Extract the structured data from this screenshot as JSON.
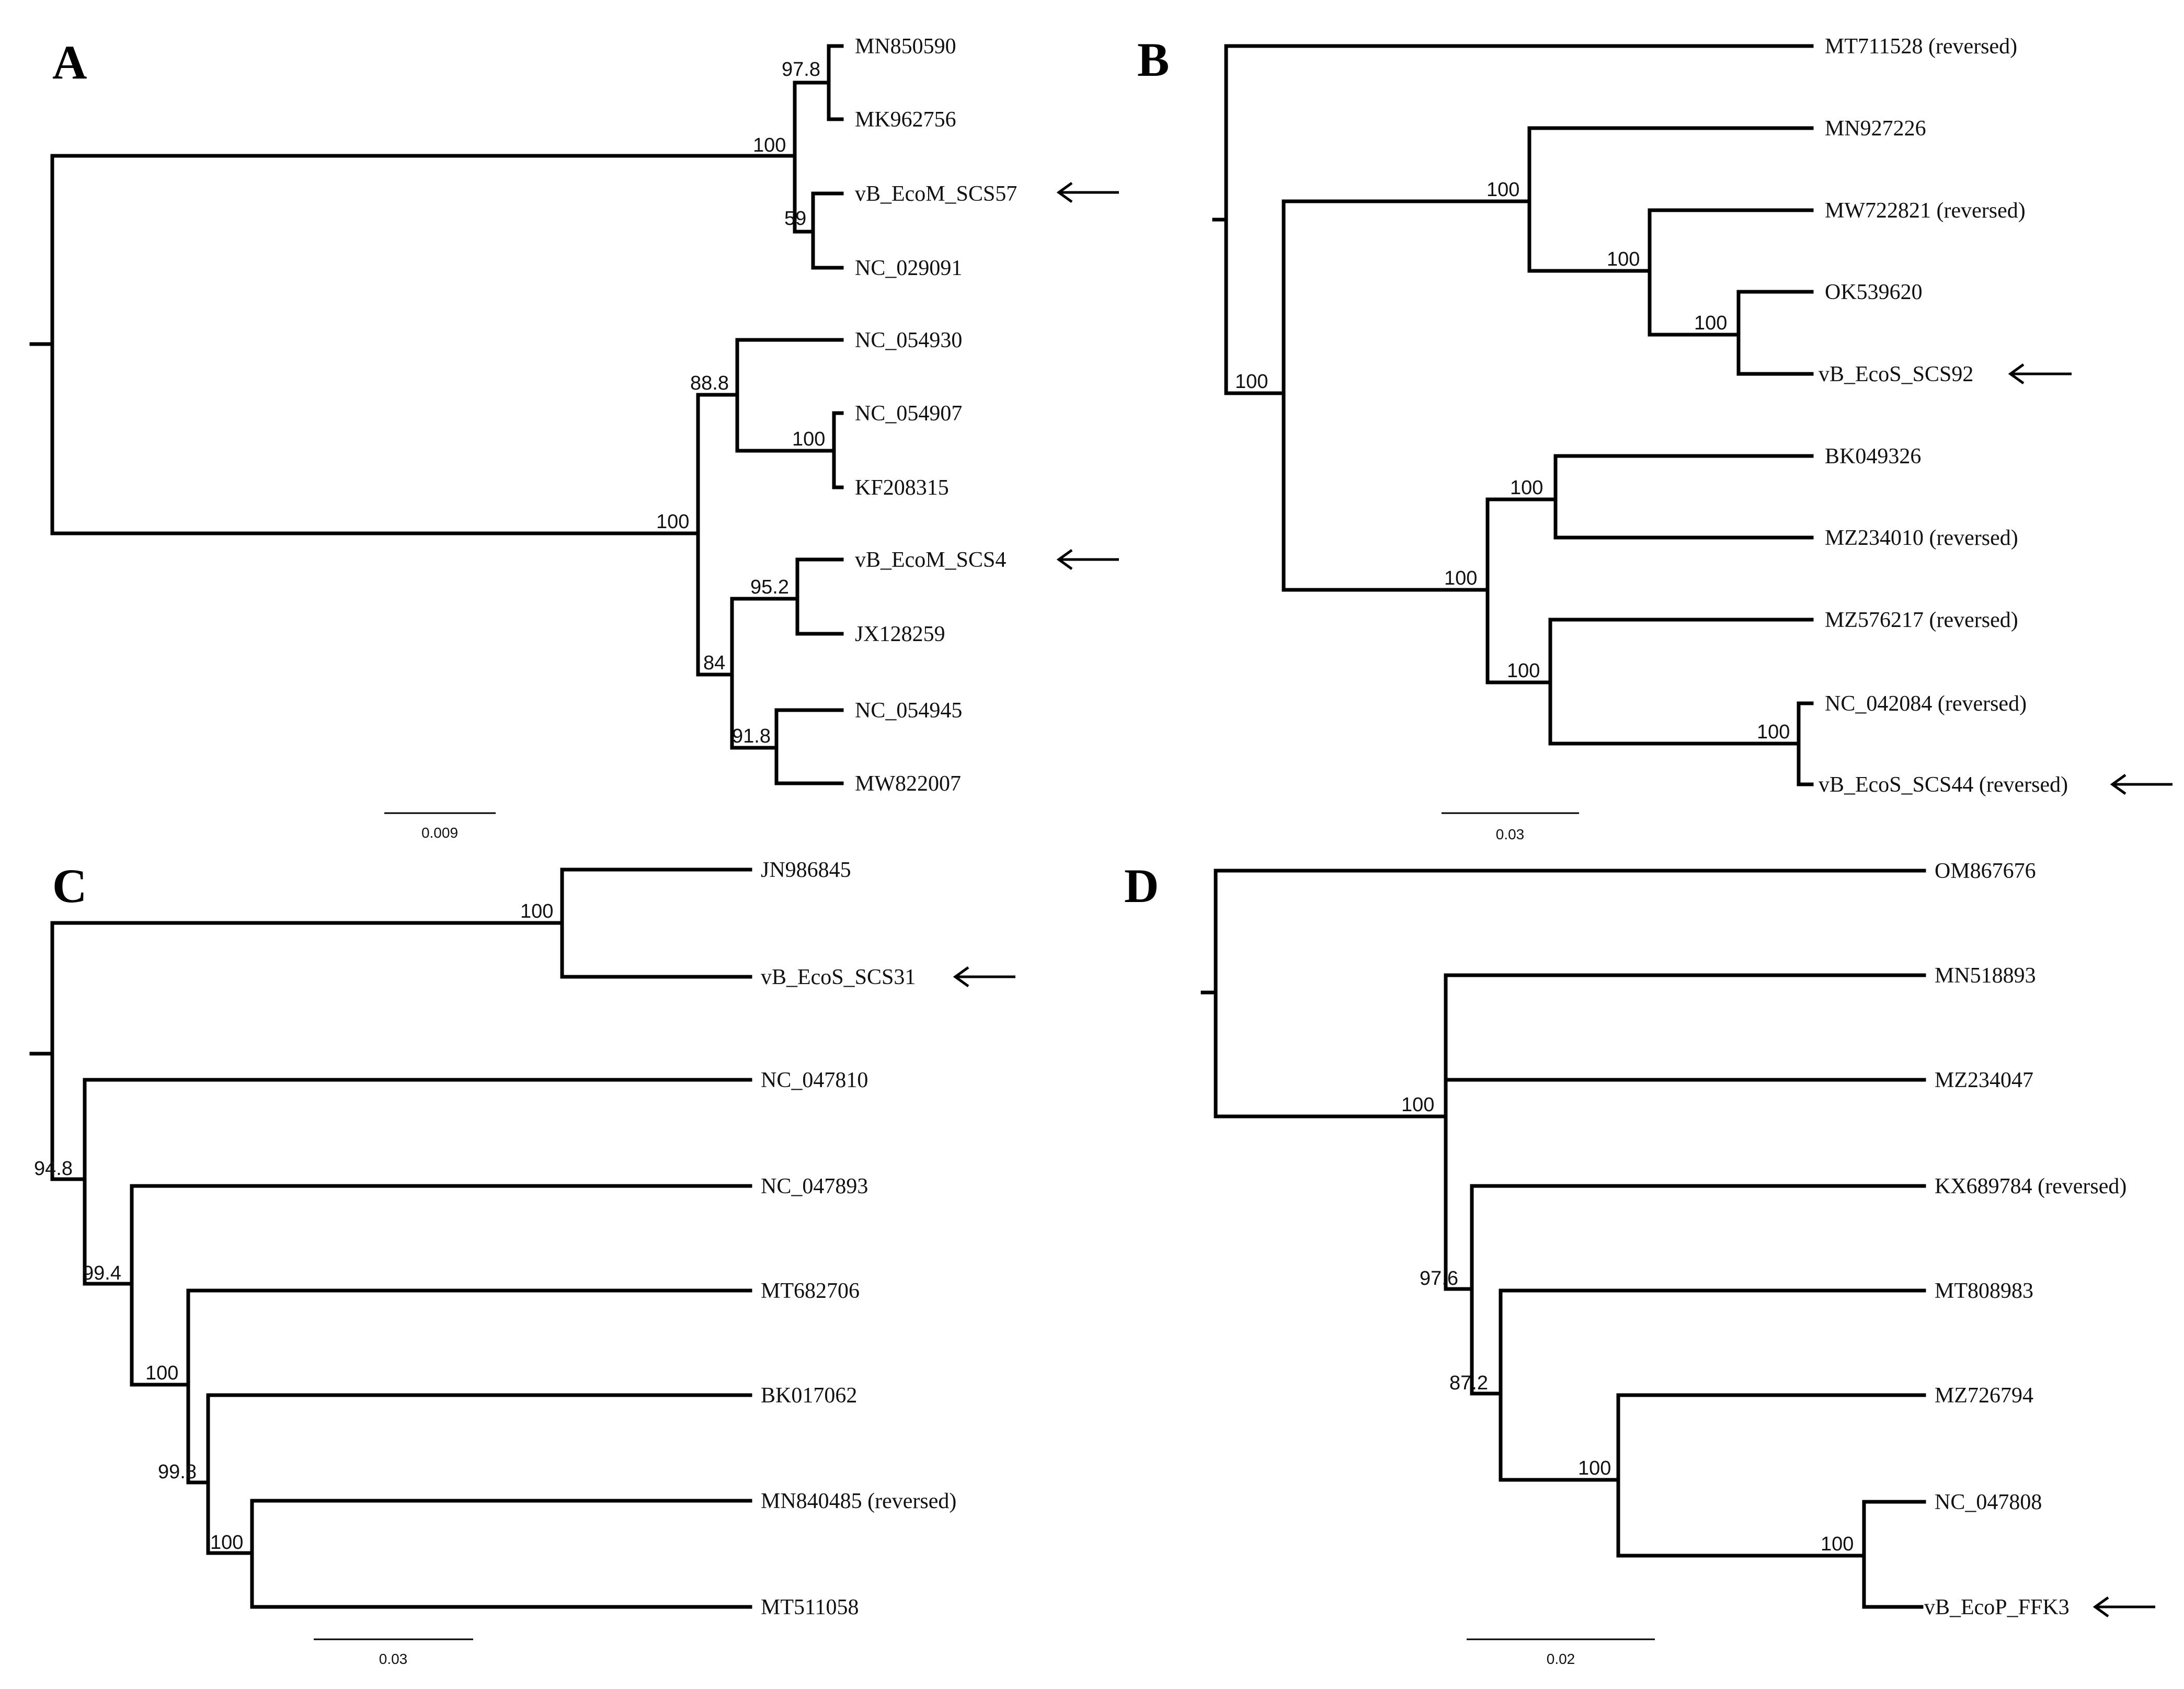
{
  "panels": [
    {
      "label": "A",
      "scale": "0.009",
      "taxa": [
        "MN850590",
        "MK962756",
        "vB_EcoM_SCS57",
        "NC_029091",
        "NC_054930",
        "NC_054907",
        "KF208315",
        "vB_EcoM_SCS4",
        "JX128259",
        "NC_054945",
        "MW822007"
      ],
      "bootstraps": [
        "97.8",
        "100",
        "59",
        "100",
        "88.8",
        "100",
        "95.2",
        "84",
        "91.8"
      ],
      "arrow_targets": [
        "vB_EcoM_SCS57",
        "vB_EcoM_SCS4"
      ]
    },
    {
      "label": "B",
      "scale": "0.03",
      "taxa": [
        "MT711528 (reversed)",
        "MN927226",
        "MW722821 (reversed)",
        "OK539620",
        "vB_EcoS_SCS92",
        "BK049326",
        "MZ234010 (reversed)",
        "MZ576217 (reversed)",
        "NC_042084 (reversed)",
        "vB_EcoS_SCS44 (reversed)"
      ],
      "bootstraps": [
        "100",
        "100",
        "100",
        "100",
        "100",
        "100",
        "100",
        "100"
      ],
      "arrow_targets": [
        "vB_EcoS_SCS92",
        "vB_EcoS_SCS44 (reversed)"
      ]
    },
    {
      "label": "C",
      "scale": "0.03",
      "taxa": [
        "JN986845",
        "vB_EcoS_SCS31",
        "NC_047810",
        "NC_047893",
        "MT682706",
        "BK017062",
        "MN840485 (reversed)",
        "MT511058"
      ],
      "bootstraps": [
        "100",
        "94.8",
        "99.4",
        "100",
        "99.8",
        "100"
      ],
      "arrow_targets": [
        "vB_EcoS_SCS31"
      ]
    },
    {
      "label": "D",
      "scale": "0.02",
      "taxa": [
        "OM867676",
        "MN518893",
        "MZ234047",
        "KX689784 (reversed)",
        "MT808983",
        "MZ726794",
        "NC_047808",
        "vB_EcoP_FFK3"
      ],
      "bootstraps": [
        "100",
        "97.6",
        "87.2",
        "100",
        "100"
      ],
      "arrow_targets": [
        "vB_EcoP_FFK3"
      ]
    }
  ]
}
